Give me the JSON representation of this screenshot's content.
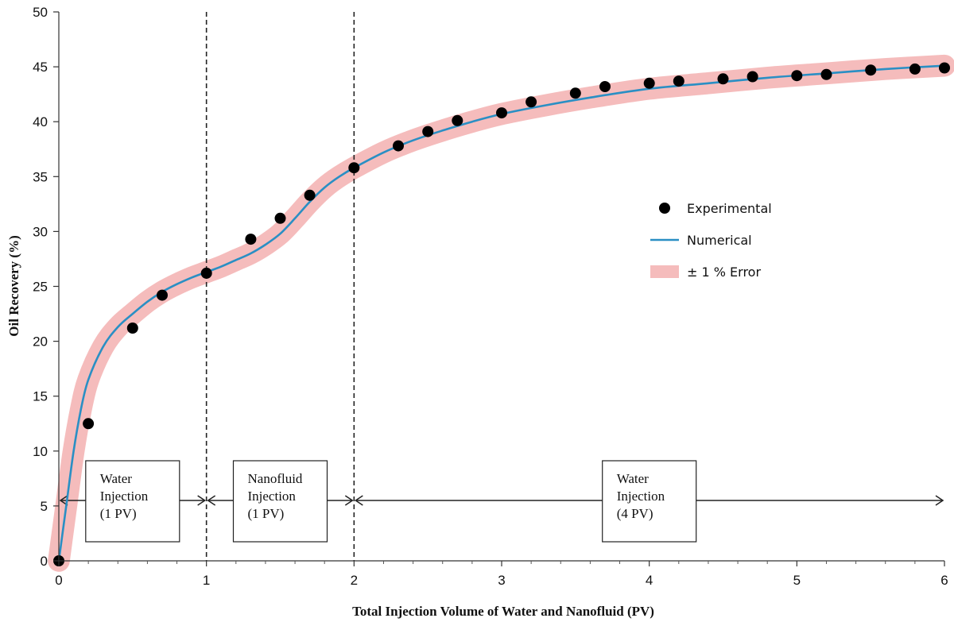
{
  "chart_data": {
    "type": "scatter",
    "title": "",
    "xlabel": "Total Injection Volume of Water and Nanofluid (PV)",
    "ylabel": "Oil Recovery (%)",
    "xlim": [
      0,
      6
    ],
    "ylim": [
      0,
      50
    ],
    "xticks": [
      "0",
      "1",
      "2",
      "3",
      "4",
      "5",
      "6"
    ],
    "yticks": [
      "0",
      "5",
      "10",
      "15",
      "20",
      "25",
      "30",
      "35",
      "40",
      "45",
      "50"
    ],
    "grid": false,
    "legend": {
      "placement": "right-center",
      "entries": [
        "Experimental",
        "Numerical",
        "± 1 % Error"
      ]
    },
    "series": [
      {
        "name": "Experimental",
        "kind": "scatter",
        "color": "#000000",
        "points": [
          [
            0,
            0
          ],
          [
            0.2,
            12.5
          ],
          [
            0.5,
            21.2
          ],
          [
            0.7,
            24.2
          ],
          [
            1.0,
            26.2
          ],
          [
            1.3,
            29.3
          ],
          [
            1.5,
            31.2
          ],
          [
            1.7,
            33.3
          ],
          [
            2.0,
            35.8
          ],
          [
            2.3,
            37.8
          ],
          [
            2.5,
            39.1
          ],
          [
            2.7,
            40.1
          ],
          [
            3.0,
            40.8
          ],
          [
            3.2,
            41.8
          ],
          [
            3.5,
            42.6
          ],
          [
            3.7,
            43.2
          ],
          [
            4.0,
            43.5
          ],
          [
            4.2,
            43.7
          ],
          [
            4.5,
            43.9
          ],
          [
            4.7,
            44.1
          ],
          [
            5.0,
            44.2
          ],
          [
            5.2,
            44.3
          ],
          [
            5.5,
            44.7
          ],
          [
            5.8,
            44.8
          ],
          [
            6.0,
            44.9
          ]
        ]
      },
      {
        "name": "Numerical",
        "kind": "line",
        "color": "#2a8fc4",
        "points": [
          [
            0,
            0
          ],
          [
            0.05,
            5.0
          ],
          [
            0.1,
            10.0
          ],
          [
            0.15,
            13.8
          ],
          [
            0.2,
            16.5
          ],
          [
            0.3,
            19.5
          ],
          [
            0.4,
            21.3
          ],
          [
            0.5,
            22.5
          ],
          [
            0.6,
            23.6
          ],
          [
            0.7,
            24.5
          ],
          [
            0.8,
            25.2
          ],
          [
            0.9,
            25.8
          ],
          [
            1.0,
            26.3
          ],
          [
            1.1,
            26.8
          ],
          [
            1.2,
            27.4
          ],
          [
            1.3,
            28.0
          ],
          [
            1.4,
            28.8
          ],
          [
            1.5,
            29.8
          ],
          [
            1.6,
            31.2
          ],
          [
            1.7,
            32.7
          ],
          [
            1.8,
            34.0
          ],
          [
            1.9,
            35.0
          ],
          [
            2.0,
            35.8
          ],
          [
            2.2,
            37.2
          ],
          [
            2.4,
            38.3
          ],
          [
            2.6,
            39.2
          ],
          [
            2.8,
            40.0
          ],
          [
            3.0,
            40.7
          ],
          [
            3.3,
            41.5
          ],
          [
            3.6,
            42.2
          ],
          [
            4.0,
            43.0
          ],
          [
            4.4,
            43.5
          ],
          [
            4.8,
            44.0
          ],
          [
            5.2,
            44.4
          ],
          [
            5.6,
            44.8
          ],
          [
            6.0,
            45.1
          ]
        ]
      },
      {
        "name": "± 1 % Error",
        "kind": "band",
        "color": "#f2a6a6",
        "halfwidth": 1
      }
    ],
    "phase_dividers": [
      1,
      2
    ],
    "phase_arrow_y": 5.5,
    "phases": [
      {
        "lines": [
          "Water",
          "Injection",
          "(1 PV)"
        ],
        "x_start": 0,
        "x_end": 1
      },
      {
        "lines": [
          "Nanofluid",
          "Injection",
          "(1 PV)"
        ],
        "x_start": 1,
        "x_end": 2
      },
      {
        "lines": [
          "Water",
          "Injection",
          "(4 PV)"
        ],
        "x_start": 2,
        "x_end": 6
      }
    ]
  }
}
